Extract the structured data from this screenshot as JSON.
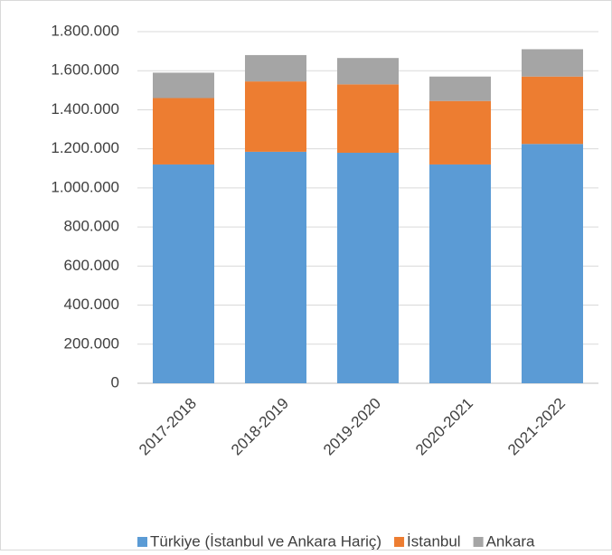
{
  "chart_data": {
    "type": "bar",
    "stacked": true,
    "categories": [
      "2017-2018",
      "2018-2019",
      "2019-2020",
      "2020-2021",
      "2021-2022"
    ],
    "series": [
      {
        "name": "Türkiye (İstanbul ve Ankara Hariç)",
        "color": "#5b9bd5",
        "values": [
          1120000,
          1185000,
          1180000,
          1120000,
          1225000
        ]
      },
      {
        "name": "İstanbul",
        "color": "#ed7d31",
        "values": [
          340000,
          360000,
          350000,
          325000,
          345000
        ]
      },
      {
        "name": "Ankara",
        "color": "#a5a5a5",
        "values": [
          130000,
          135000,
          135000,
          125000,
          140000
        ]
      }
    ],
    "ylim": [
      0,
      1800000
    ],
    "yticks": [
      0,
      {
        "value": 200000,
        "label": "200.000"
      },
      {
        "value": 400000,
        "label": "400.000"
      },
      {
        "value": 600000,
        "label": "600.000"
      },
      {
        "value": 800000,
        "label": "800.000"
      },
      {
        "value": 1000000,
        "label": "1.000.000"
      },
      {
        "value": 1200000,
        "label": "1.200.000"
      },
      {
        "value": 1400000,
        "label": "1.400.000"
      },
      {
        "value": 1600000,
        "label": "1.600.000"
      },
      {
        "value": 1800000,
        "label": "1.800.000"
      }
    ],
    "grid": true,
    "legend": "bottom"
  }
}
